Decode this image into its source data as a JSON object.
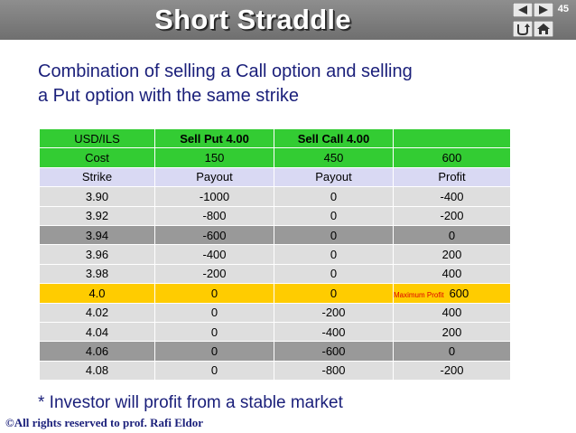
{
  "header": {
    "title": "Short Straddle",
    "slide_number": "45",
    "nav_icons": [
      "arrow-left-icon",
      "arrow-right-icon",
      "return-icon",
      "home-icon"
    ]
  },
  "subtitle": {
    "line1": "Combination of selling a Call option and selling",
    "line2": "a Put option with the same strike"
  },
  "table": {
    "header": [
      "USD/ILS",
      "Sell Put 4.00",
      "Sell Call 4.00",
      ""
    ],
    "cost": [
      "Cost",
      "150",
      "450",
      "600"
    ],
    "columns": [
      "Strike",
      "Payout",
      "Payout",
      "Profit"
    ],
    "rows": [
      [
        "3.90",
        "-1000",
        "0",
        "-400"
      ],
      [
        "3.92",
        "-800",
        "0",
        "-200"
      ],
      [
        "3.94",
        "-600",
        "0",
        "0"
      ],
      [
        "3.96",
        "-400",
        "0",
        "200"
      ],
      [
        "3.98",
        "-200",
        "0",
        "400"
      ],
      [
        "4.0",
        "0",
        "0",
        "600"
      ],
      [
        "4.02",
        "0",
        "-200",
        "400"
      ],
      [
        "4.04",
        "0",
        "-400",
        "200"
      ],
      [
        "4.06",
        "0",
        "-600",
        "0"
      ],
      [
        "4.08",
        "0",
        "-800",
        "-200"
      ]
    ],
    "max_profit_label": "Maximum Profit"
  },
  "note": "* Investor will profit from a stable market",
  "footer": "©All rights reserved to prof. Rafi Eldor",
  "colors": {
    "header_bg": "#7f7f7f",
    "text_blue": "#1a1f7a",
    "green": "#33cc33",
    "lavender": "#d9d9f3",
    "light_gray": "#dedede",
    "dark_gray": "#999999",
    "gold": "#ffcc00",
    "red": "#dd0000"
  }
}
